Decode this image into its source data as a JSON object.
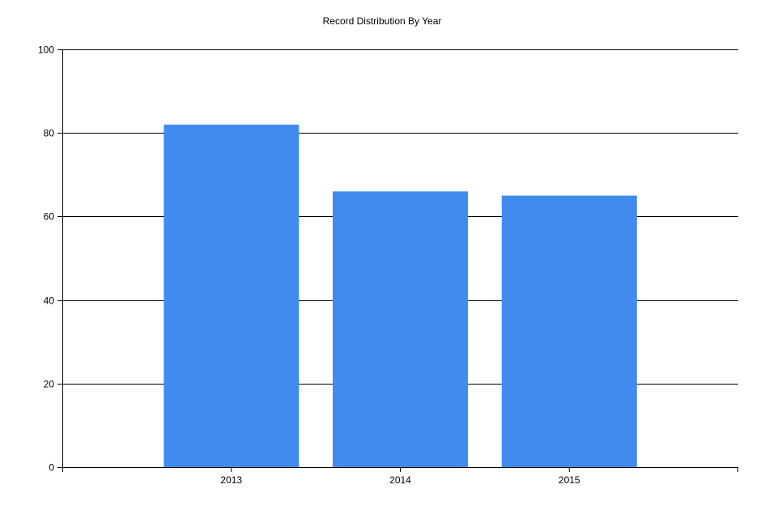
{
  "chart_data": {
    "type": "bar",
    "title": "Record Distribution By Year",
    "xlabel": "",
    "ylabel": "",
    "categories": [
      "2013",
      "2014",
      "2015"
    ],
    "values": [
      82,
      66,
      65
    ],
    "ylim": [
      0,
      100
    ],
    "yticks": [
      "0",
      "20",
      "40",
      "60",
      "80",
      "100"
    ],
    "grid": true,
    "legend": "none",
    "bar_color": "#418BEF",
    "grid_color": "#000000"
  }
}
